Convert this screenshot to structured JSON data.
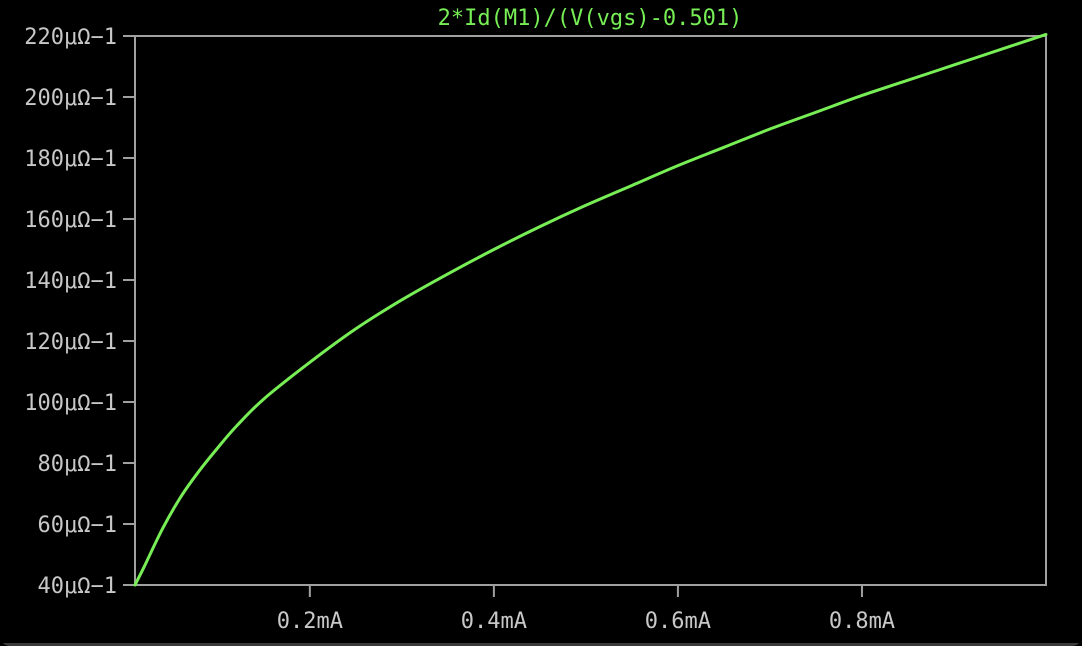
{
  "chart_data": {
    "type": "line",
    "title": "2*Id(M1)/(V(vgs)-0.501)",
    "xlabel": "",
    "ylabel": "",
    "x_ticks": [
      {
        "value": 0.2,
        "label": "0.2mA"
      },
      {
        "value": 0.4,
        "label": "0.4mA"
      },
      {
        "value": 0.6,
        "label": "0.6mA"
      },
      {
        "value": 0.8,
        "label": "0.8mA"
      }
    ],
    "y_ticks": [
      {
        "value": 40,
        "label": "40μΩ−1"
      },
      {
        "value": 60,
        "label": "60μΩ−1"
      },
      {
        "value": 80,
        "label": "80μΩ−1"
      },
      {
        "value": 100,
        "label": "100μΩ−1"
      },
      {
        "value": 120,
        "label": "120μΩ−1"
      },
      {
        "value": 140,
        "label": "140μΩ−1"
      },
      {
        "value": 160,
        "label": "160μΩ−1"
      },
      {
        "value": 180,
        "label": "180μΩ−1"
      },
      {
        "value": 200,
        "label": "200μΩ−1"
      },
      {
        "value": 220,
        "label": "220μΩ−1"
      }
    ],
    "xlim": [
      0.01,
      1.0
    ],
    "ylim": [
      40,
      220
    ],
    "grid": false,
    "series": [
      {
        "color": "#77ee55",
        "x": [
          0.01,
          0.02,
          0.04,
          0.06,
          0.08,
          0.1,
          0.12,
          0.15,
          0.2,
          0.25,
          0.3,
          0.35,
          0.4,
          0.45,
          0.5,
          0.55,
          0.6,
          0.65,
          0.7,
          0.75,
          0.8,
          0.85,
          0.9,
          0.95,
          1.0
        ],
        "y": [
          40.0,
          46.0,
          58.5,
          69.0,
          77.5,
          85.0,
          92.0,
          101.0,
          113.0,
          124.0,
          133.5,
          142.0,
          150.0,
          157.5,
          164.5,
          171.0,
          177.5,
          183.5,
          189.5,
          195.0,
          200.5,
          205.5,
          210.5,
          215.5,
          220.5
        ]
      }
    ]
  }
}
